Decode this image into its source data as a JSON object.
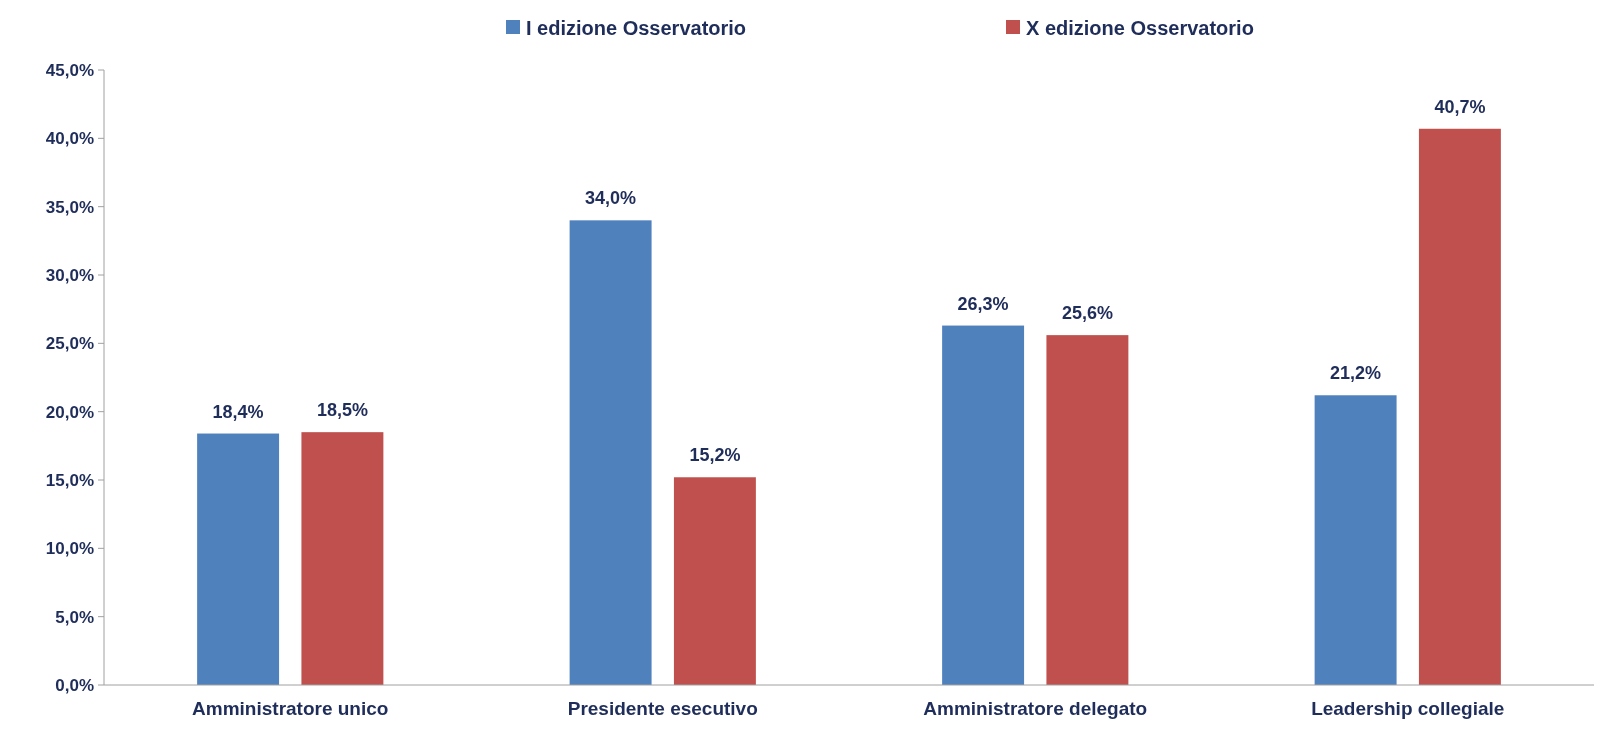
{
  "chart_data": {
    "type": "bar",
    "categories": [
      "Amministratore unico",
      "Presidente esecutivo",
      "Amministratore delegato",
      "Leadership collegiale"
    ],
    "series": [
      {
        "name": "I edizione Osservatorio",
        "color": "#4f81bd",
        "values": [
          18.4,
          34.0,
          26.3,
          21.2
        ],
        "value_labels": [
          "18,4%",
          "34,0%",
          "26,3%",
          "21,2%"
        ]
      },
      {
        "name": "X edizione Osservatorio",
        "color": "#c0504d",
        "values": [
          18.5,
          15.2,
          25.6,
          40.7
        ],
        "value_labels": [
          "18,5%",
          "15,2%",
          "25,6%",
          "40,7%"
        ]
      }
    ],
    "ylim": [
      0,
      45
    ],
    "yticks": [
      {
        "value": 0,
        "label": "0,0%"
      },
      {
        "value": 5,
        "label": "5,0%"
      },
      {
        "value": 10,
        "label": "10,0%"
      },
      {
        "value": 15,
        "label": "15,0%"
      },
      {
        "value": 20,
        "label": "20,0%"
      },
      {
        "value": 25,
        "label": "25,0%"
      },
      {
        "value": 30,
        "label": "30,0%"
      },
      {
        "value": 35,
        "label": "35,0%"
      },
      {
        "value": 40,
        "label": "40,0%"
      },
      {
        "value": 45,
        "label": "45,0%"
      }
    ],
    "legend": "top",
    "grid": false
  }
}
